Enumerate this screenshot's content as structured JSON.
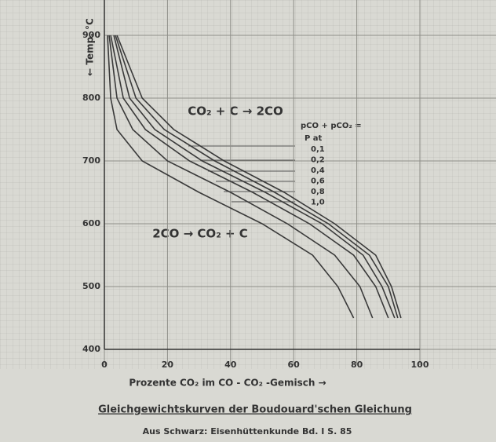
{
  "chart_data": {
    "type": "line",
    "title": "Gleichgewichtskurven der Boudouard'schen Gleichung",
    "subtitle": "Aus Schwarz: Eisenhüttenkunde Bd. I S. 85",
    "x_label": "Prozente CO₂ im CO - CO₂ -Gemisch →",
    "y_label": "← Temp. °C",
    "annotations": [
      "CO₂ + C → 2CO",
      "2CO → CO₂ + C",
      "pCO + pCO₂ =",
      "P at"
    ],
    "xlim": [
      0,
      100
    ],
    "xticks": [
      0,
      20,
      40,
      60,
      80,
      100
    ],
    "ylim": [
      400,
      950
    ],
    "yticks": [
      400,
      500,
      600,
      700,
      800,
      900
    ],
    "grid": true,
    "series": [
      {
        "name": "0,1",
        "color": "#3a3a3a",
        "x": [
          1,
          2,
          4,
          12,
          30,
          50,
          66,
          74,
          79
        ],
        "values": [
          900,
          800,
          750,
          700,
          650,
          600,
          550,
          500,
          450
        ]
      },
      {
        "name": "0,2",
        "color": "#3a3a3a",
        "x": [
          1.5,
          4,
          9,
          20,
          40,
          58,
          73,
          81,
          85
        ],
        "values": [
          900,
          800,
          750,
          700,
          650,
          600,
          550,
          500,
          450
        ]
      },
      {
        "name": "0,4",
        "color": "#3a3a3a",
        "x": [
          2,
          6,
          13,
          27,
          47,
          65,
          79,
          86,
          90
        ],
        "values": [
          900,
          800,
          750,
          700,
          650,
          600,
          550,
          500,
          450
        ]
      },
      {
        "name": "0,6",
        "color": "#3a3a3a",
        "x": [
          3,
          8,
          16,
          31,
          51,
          69,
          82,
          88,
          92
        ],
        "values": [
          900,
          800,
          750,
          700,
          650,
          600,
          550,
          500,
          450
        ]
      },
      {
        "name": "0,8",
        "color": "#3a3a3a",
        "x": [
          3.5,
          10,
          19,
          35,
          54,
          71,
          84,
          90,
          93
        ],
        "values": [
          900,
          800,
          750,
          700,
          650,
          600,
          550,
          500,
          450
        ]
      },
      {
        "name": "1,0",
        "color": "#3a3a3a",
        "x": [
          4,
          12,
          22,
          38,
          57,
          73,
          86,
          91,
          94
        ],
        "values": [
          900,
          800,
          750,
          700,
          650,
          600,
          550,
          500,
          450
        ]
      }
    ]
  }
}
